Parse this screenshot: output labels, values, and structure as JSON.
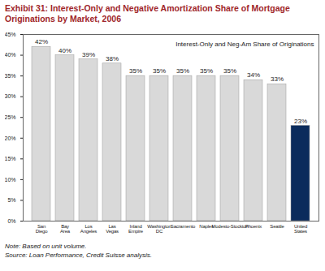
{
  "chart_data": {
    "type": "bar",
    "title": "Exhibit 31: Interest-Only and Negative Amortization Share of Mortgage Originations by Market, 2006",
    "annotation": "Interest-Only and Neg-Am Share of Originations",
    "notes": [
      "Note: Based on unit volume.",
      "Source: Loan Performance, Credit Suisse analysis."
    ],
    "categories": [
      "San Diego",
      "Bay Area",
      "Los Angeles",
      "Las Vegas",
      "Inland Empire",
      "Washington DC",
      "Sacramento",
      "Naples",
      "Modesto-Stockton",
      "Phoenix",
      "Seattle",
      "United States"
    ],
    "values": [
      42,
      40,
      39,
      38,
      35,
      35,
      35,
      35,
      35,
      34,
      33,
      23
    ],
    "value_labels": [
      "42%",
      "40%",
      "39%",
      "38%",
      "35%",
      "35%",
      "35%",
      "35%",
      "35%",
      "34%",
      "33%",
      "23%"
    ],
    "data_labels": true,
    "colors": [
      "#d9d9d9",
      "#d9d9d9",
      "#d9d9d9",
      "#d9d9d9",
      "#d9d9d9",
      "#d9d9d9",
      "#d9d9d9",
      "#d9d9d9",
      "#d9d9d9",
      "#d9d9d9",
      "#d9d9d9",
      "#0b2b5c"
    ],
    "ylim": [
      0,
      45
    ],
    "yticks": [
      {
        "value": 0,
        "label": "0%"
      },
      {
        "value": 5,
        "label": "5%"
      },
      {
        "value": 10,
        "label": "10%"
      },
      {
        "value": 15,
        "label": "15%"
      },
      {
        "value": 20,
        "label": "20%"
      },
      {
        "value": 25,
        "label": "25%"
      },
      {
        "value": 30,
        "label": "30%"
      },
      {
        "value": 35,
        "label": "35%"
      },
      {
        "value": 40,
        "label": "40%"
      },
      {
        "value": 45,
        "label": "45%"
      }
    ],
    "grid": false
  }
}
